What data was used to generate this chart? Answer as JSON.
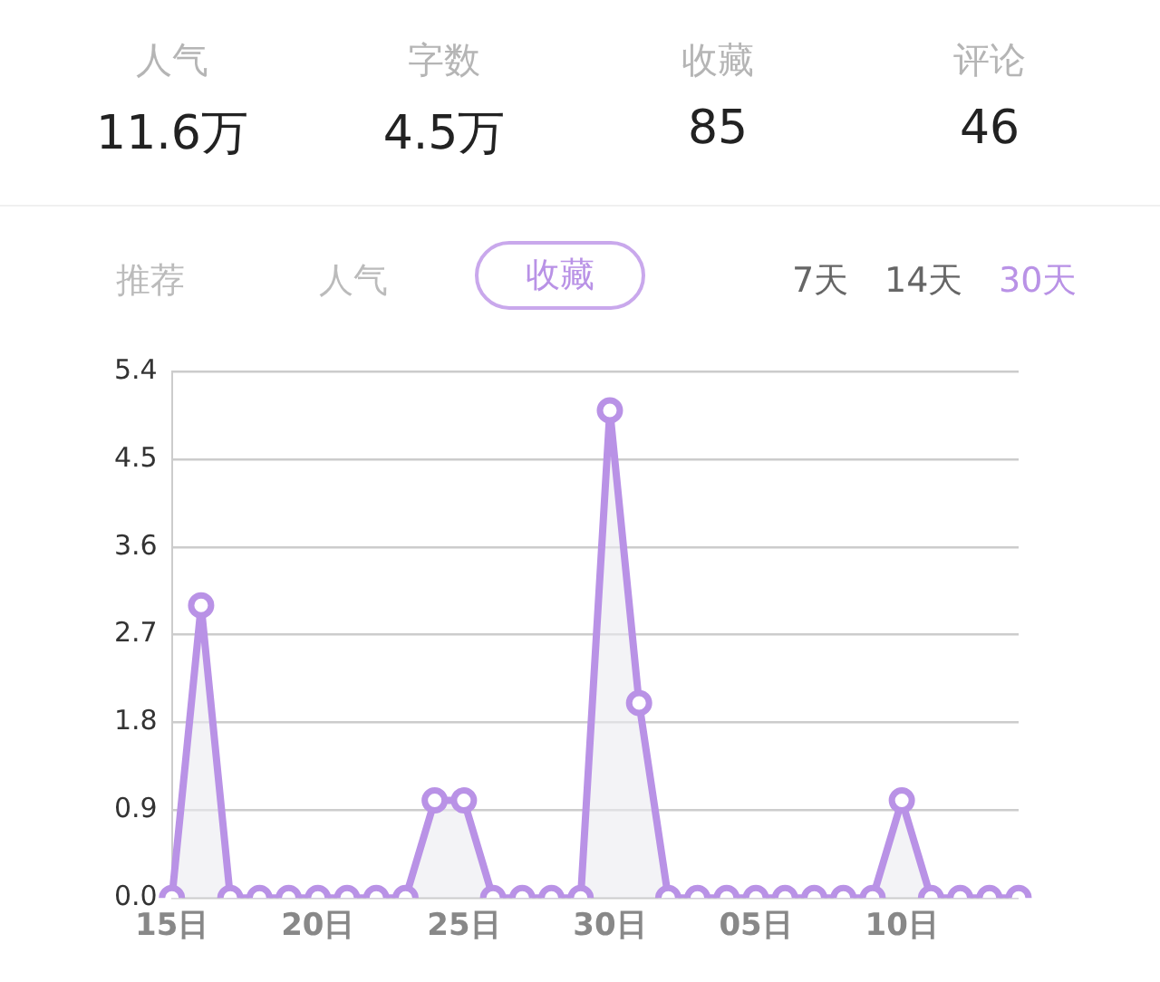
{
  "chart_data": [
    {
      "type": "other",
      "annotations": [
        "人气",
        "11.6万",
        "字数",
        "4.5万",
        "收藏",
        "85",
        "评论",
        "46"
      ]
    },
    {
      "type": "area",
      "annotations": [
        "推荐",
        "人气",
        "收藏",
        "7天",
        "14天",
        "30天"
      ],
      "categories": [
        "15日",
        null,
        null,
        null,
        null,
        "20日",
        null,
        null,
        null,
        null,
        "25日",
        null,
        null,
        null,
        null,
        "30日",
        null,
        null,
        null,
        null,
        "05日",
        null,
        null,
        null,
        null,
        "10日",
        null,
        null,
        null,
        null
      ],
      "series": [
        {
          "color": "#b992e6",
          "values": [
            0,
            3,
            0,
            0,
            0,
            0,
            0,
            0,
            0,
            1,
            1,
            0,
            0,
            0,
            0,
            5,
            2,
            0,
            0,
            0,
            0,
            0,
            0,
            0,
            0,
            1,
            0,
            0,
            0,
            0
          ]
        }
      ],
      "ylim": [
        0,
        5.4
      ],
      "yticks": [
        {
          "value": 0,
          "label": "0.0"
        },
        0.9,
        1.8,
        2.7,
        3.6,
        4.5,
        5.4
      ],
      "grid": "y",
      "marker": "circle",
      "line_style": "solid"
    }
  ]
}
